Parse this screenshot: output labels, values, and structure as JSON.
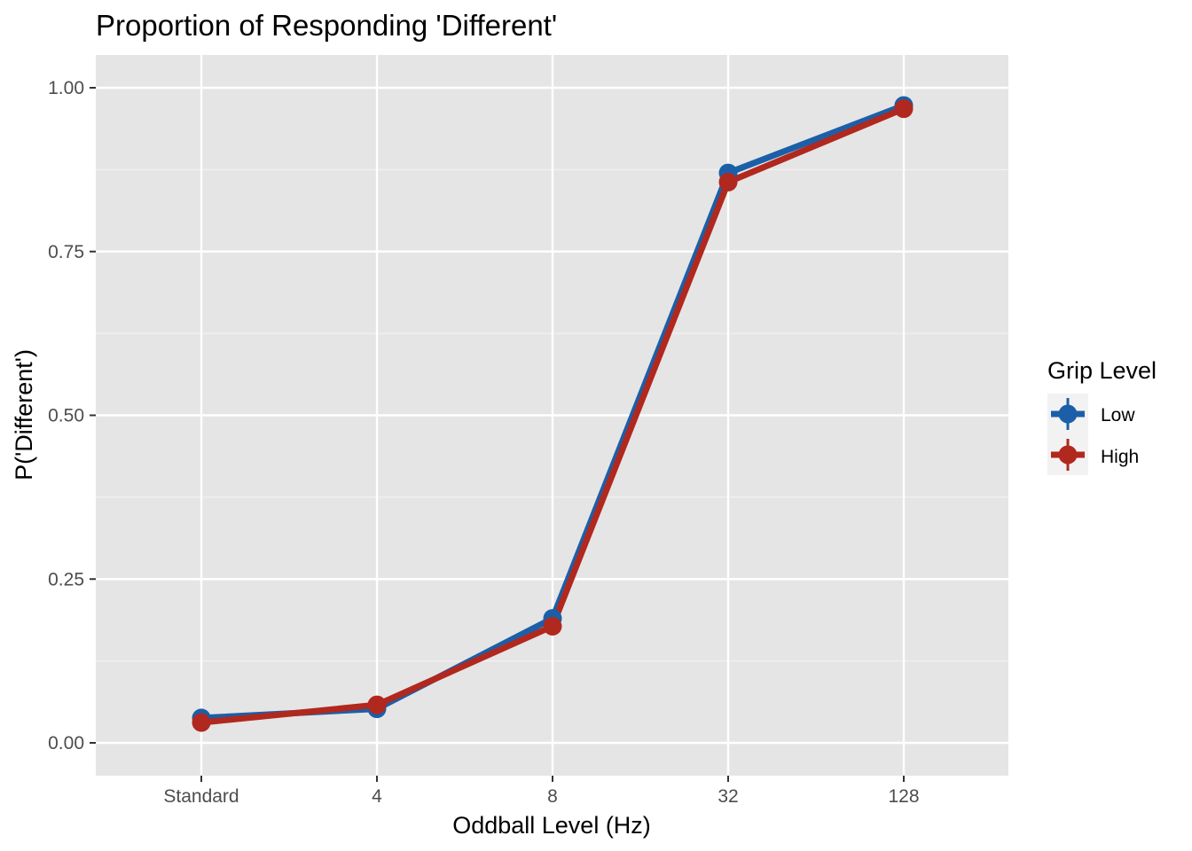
{
  "chart_data": {
    "type": "line",
    "title": "Proportion of Responding 'Different'",
    "xlabel": "Oddball Level (Hz)",
    "ylabel": "P('Different')",
    "categories": [
      "Standard",
      "4",
      "8",
      "32",
      "128"
    ],
    "ylim": [
      -0.05,
      1.05
    ],
    "yticks": [
      "0.00",
      "0.25",
      "0.50",
      "0.75",
      "1.00"
    ],
    "ytick_values": [
      0,
      0.25,
      0.5,
      0.75,
      1.0
    ],
    "grid": true,
    "legend": {
      "title": "Grip Level",
      "position": "right"
    },
    "series": [
      {
        "name": "Low",
        "color": "#1b5fa8",
        "values": [
          0.038,
          0.052,
          0.19,
          0.87,
          0.973
        ]
      },
      {
        "name": "High",
        "color": "#b1281e",
        "values": [
          0.031,
          0.058,
          0.178,
          0.856,
          0.968
        ]
      }
    ]
  },
  "colors": {
    "panel_background": "#e5e5e5",
    "grid_major": "#ffffff",
    "tick_text": "#4d4d4d"
  }
}
